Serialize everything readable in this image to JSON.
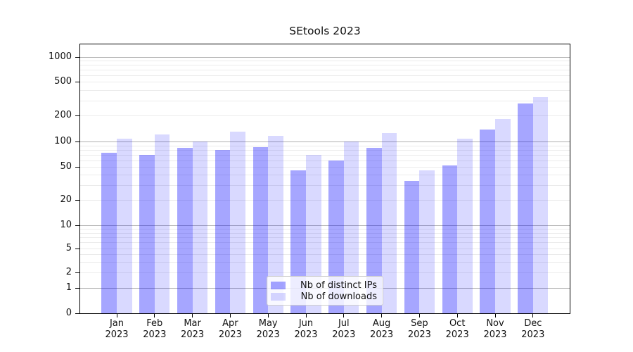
{
  "title": "SEtools 2023",
  "legend": {
    "items": [
      {
        "label": "Nb of distinct IPs",
        "color": "rgba(0,0,255,0.35)"
      },
      {
        "label": "Nb of downloads",
        "color": "rgba(0,0,255,0.15)"
      }
    ]
  },
  "chart_data": {
    "type": "bar",
    "title": "SEtools 2023",
    "categories": [
      "Jan 2023",
      "Feb 2023",
      "Mar 2023",
      "Apr 2023",
      "May 2023",
      "Jun 2023",
      "Jul 2023",
      "Aug 2023",
      "Sep 2023",
      "Oct 2023",
      "Nov 2023",
      "Dec 2023"
    ],
    "series": [
      {
        "name": "Nb of distinct IPs",
        "color": "rgba(0,0,255,0.35)",
        "values": [
          74,
          70,
          84,
          80,
          86,
          45,
          60,
          84,
          34,
          52,
          138,
          277
        ]
      },
      {
        "name": "Nb of downloads",
        "color": "rgba(0,0,255,0.15)",
        "values": [
          108,
          120,
          100,
          131,
          117,
          70,
          101,
          125,
          45,
          108,
          181,
          326
        ]
      }
    ],
    "xlabel": "",
    "ylabel": "",
    "yscale": "symlog",
    "yticks": [
      0,
      1,
      2,
      5,
      10,
      20,
      50,
      100,
      200,
      500,
      1000
    ],
    "ylim": [
      0,
      1430
    ],
    "grid": "horizontal major and minor gridlines",
    "legend_position": "lower center"
  }
}
